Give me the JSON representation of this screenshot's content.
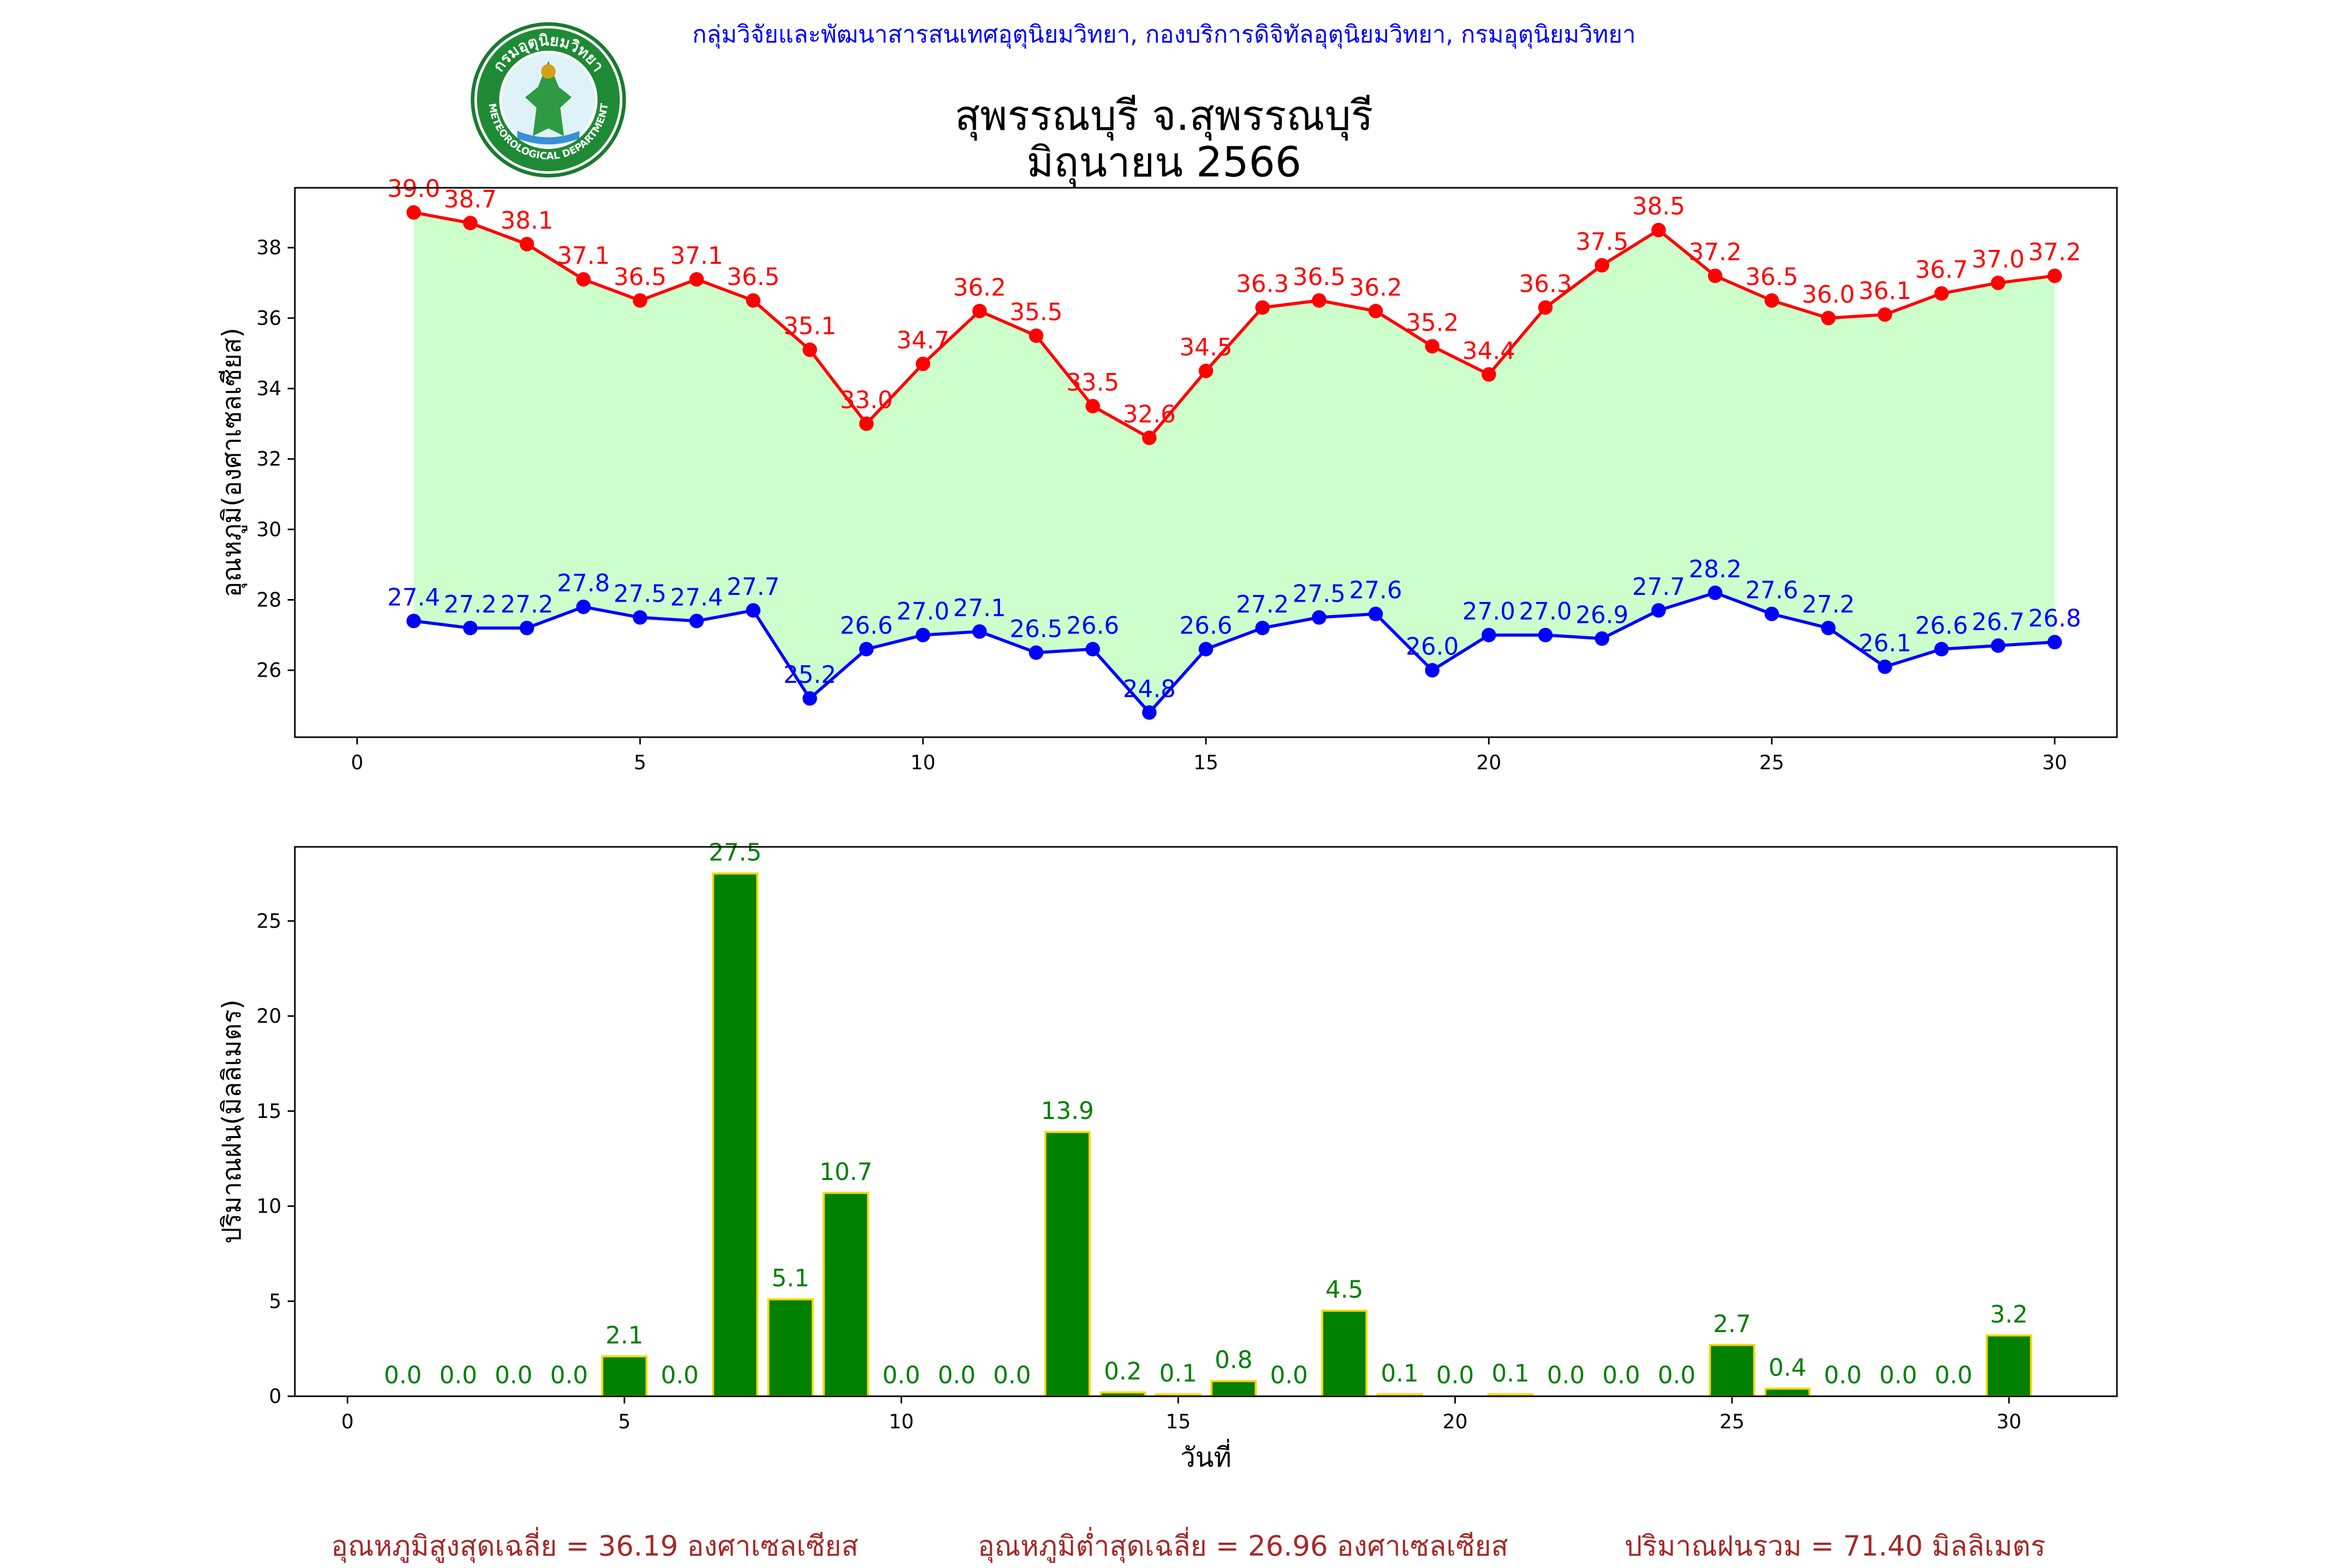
{
  "header": {
    "agency": "กลุ่มวิจัยและพัฒนาสารสนเทศอุตุนิยมวิทยา, กองบริการดิจิทัลอุตุนิยมวิทยา, กรมอุตุนิยมวิทยา",
    "station": "สุพรรณบุรี จ.สุพรรณบุรี",
    "period": "มิถุนายน 2566",
    "logo_text_top": "กรมอุตุนิยมวิทยา",
    "logo_text_bottom": "METEOROLOGICAL DEPARTMENT"
  },
  "colors": {
    "max_line": "#ff0000",
    "min_line": "#0000ff",
    "fill": "#ccffcc",
    "bar_fill": "#008000",
    "bar_edge": "#ffd700",
    "rain_label": "#008000",
    "footer": "#a52a2a"
  },
  "chart_data": [
    {
      "type": "line",
      "ylabel": "อุณหภูมิ(องศาเซลเซียส)",
      "xlabel": "",
      "xlim": [
        -1.1,
        31.1
      ],
      "ylim": [
        24.1,
        39.7
      ],
      "xticks": [
        0,
        5,
        10,
        15,
        20,
        25,
        30
      ],
      "yticks": [
        26,
        28,
        30,
        32,
        34,
        36,
        38
      ],
      "x": [
        1,
        2,
        3,
        4,
        5,
        6,
        7,
        8,
        9,
        10,
        11,
        12,
        13,
        14,
        15,
        16,
        17,
        18,
        19,
        20,
        21,
        22,
        23,
        24,
        25,
        26,
        27,
        28,
        29,
        30
      ],
      "series": [
        {
          "key": "max",
          "values": [
            39.0,
            38.7,
            38.1,
            37.1,
            36.5,
            37.1,
            36.5,
            35.1,
            33.0,
            34.7,
            36.2,
            35.5,
            33.5,
            32.6,
            34.5,
            36.3,
            36.5,
            36.2,
            35.2,
            34.4,
            36.3,
            37.5,
            38.5,
            37.2,
            36.5,
            36.0,
            36.1,
            36.7,
            37.0,
            37.2
          ]
        },
        {
          "key": "min",
          "values": [
            27.4,
            27.2,
            27.2,
            27.8,
            27.5,
            27.4,
            27.7,
            25.2,
            26.6,
            27.0,
            27.1,
            26.5,
            26.6,
            24.8,
            26.6,
            27.2,
            27.5,
            27.6,
            26.0,
            27.0,
            27.0,
            26.9,
            27.7,
            28.2,
            27.6,
            27.2,
            26.1,
            26.6,
            26.7,
            26.8
          ]
        }
      ]
    },
    {
      "type": "bar",
      "ylabel": "ปริมาณฝน(มิลลิเมตร)",
      "xlabel": "วันที่",
      "xlim": [
        -0.95,
        31.95
      ],
      "ylim": [
        0,
        28.9
      ],
      "xticks": [
        0,
        5,
        10,
        15,
        20,
        25,
        30
      ],
      "yticks": [
        0,
        5,
        10,
        15,
        20,
        25
      ],
      "x": [
        1,
        2,
        3,
        4,
        5,
        6,
        7,
        8,
        9,
        10,
        11,
        12,
        13,
        14,
        15,
        16,
        17,
        18,
        19,
        20,
        21,
        22,
        23,
        24,
        25,
        26,
        27,
        28,
        29,
        30
      ],
      "values": [
        0.0,
        0.0,
        0.0,
        0.0,
        2.1,
        0.0,
        27.5,
        5.1,
        10.7,
        0.0,
        0.0,
        0.0,
        13.9,
        0.2,
        0.1,
        0.8,
        0.0,
        4.5,
        0.1,
        0.0,
        0.1,
        0.0,
        0.0,
        0.0,
        2.7,
        0.4,
        0.0,
        0.0,
        0.0,
        3.2
      ]
    }
  ],
  "footer": {
    "avg_max": "อุณหภูมิสูงสุดเฉลี่ย = 36.19 องศาเซลเซียส",
    "avg_min": "อุณหภูมิต่ำสุดเฉลี่ย = 26.96 องศาเซลเซียส",
    "total_rain": "ปริมาณฝนรวม = 71.40 มิลลิเมตร"
  }
}
